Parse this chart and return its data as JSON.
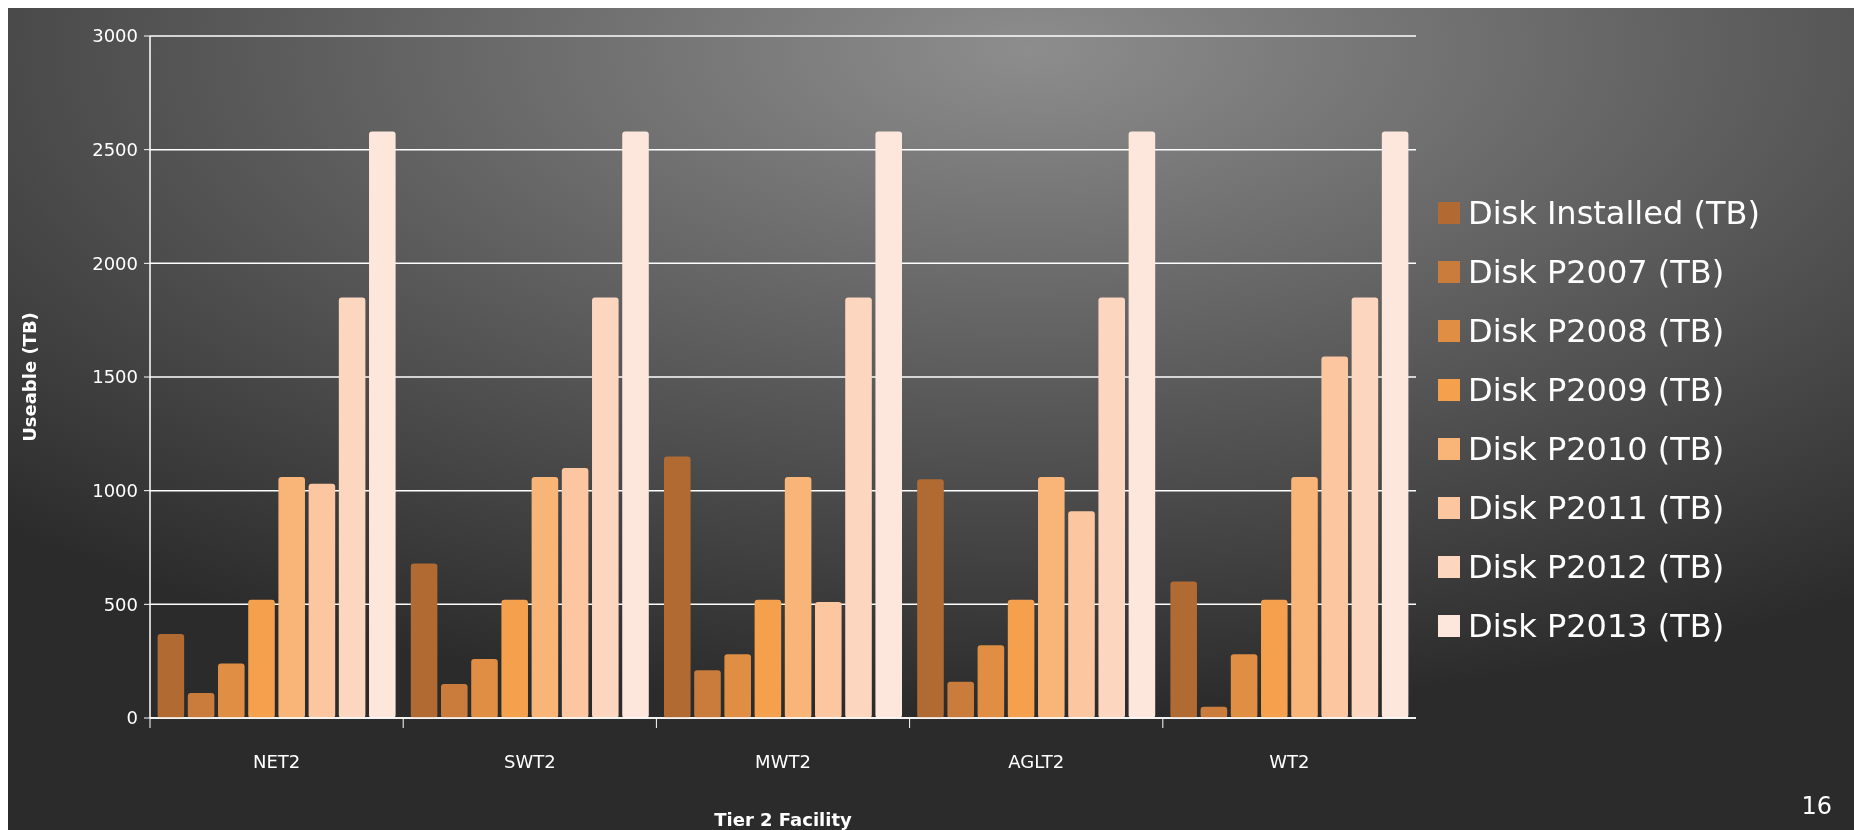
{
  "chart_data": {
    "type": "bar",
    "xlabel": "Tier 2 Facility",
    "ylabel": "Useable (TB)",
    "categories": [
      "NET2",
      "SWT2",
      "MWT2",
      "AGLT2",
      "WT2"
    ],
    "series": [
      {
        "name": "Disk Installed (TB)",
        "color": "#b06a32",
        "values": [
          370,
          680,
          1150,
          1050,
          600
        ]
      },
      {
        "name": "Disk P2007 (TB)",
        "color": "#c97c3c",
        "values": [
          110,
          150,
          210,
          160,
          50
        ]
      },
      {
        "name": "Disk P2008 (TB)",
        "color": "#e08e44",
        "values": [
          240,
          260,
          280,
          320,
          280
        ]
      },
      {
        "name": "Disk P2009 (TB)",
        "color": "#f5a04c",
        "values": [
          520,
          520,
          520,
          520,
          520
        ]
      },
      {
        "name": "Disk P2010 (TB)",
        "color": "#f9b478",
        "values": [
          1060,
          1060,
          1060,
          1060,
          1060
        ]
      },
      {
        "name": "Disk P2011 (TB)",
        "color": "#fbc6a0",
        "values": [
          1030,
          1100,
          510,
          910,
          1590
        ]
      },
      {
        "name": "Disk P2012 (TB)",
        "color": "#fcd6be",
        "values": [
          1850,
          1850,
          1850,
          1850,
          1850
        ]
      },
      {
        "name": "Disk P2013 (TB)",
        "color": "#fde6dc",
        "values": [
          2580,
          2580,
          2580,
          2580,
          2580
        ]
      }
    ],
    "ylim": [
      0,
      3000
    ],
    "yticks": [
      0,
      500,
      1000,
      1500,
      2000,
      2500,
      3000
    ],
    "grid": "y",
    "legend": "right",
    "annotations": [
      "16"
    ]
  }
}
